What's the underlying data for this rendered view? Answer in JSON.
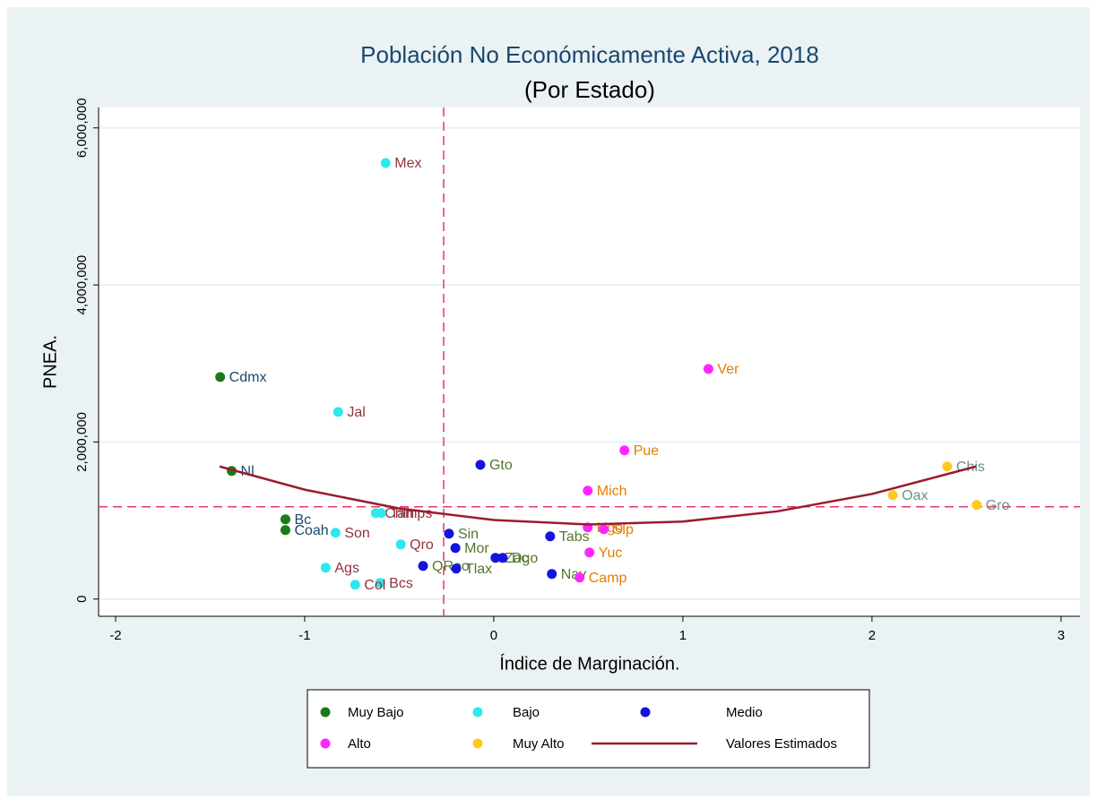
{
  "chart_data": {
    "type": "scatter",
    "title": "Población No Económicamente Activa, 2018",
    "subtitle": "(Por Estado)",
    "x_label": "Índice de Marginación.",
    "y_label": "PNEA.",
    "xlim": [
      -2.09,
      3.1
    ],
    "ylim": [
      -220000,
      6260000
    ],
    "xticks": [
      -2,
      -1,
      0,
      1,
      2,
      3
    ],
    "yticks": [
      0,
      {
        "value": 2000000,
        "label": "2,000,000"
      },
      {
        "value": 4000000,
        "label": "4,000,000"
      },
      {
        "value": 6000000,
        "label": "6,000,000"
      }
    ],
    "grid": true,
    "xline": -0.265,
    "yline": 1174000,
    "refline_color": "#e8336e",
    "series": [
      {
        "name": "Muy Bajo",
        "color": "#1a7a1a",
        "label_color": "#1a476f",
        "labels": [
          "Cdmx",
          "Nl",
          "Bc",
          "Coah"
        ],
        "x": [
          -1.447,
          -1.386,
          -1.102,
          -1.102
        ],
        "values": [
          2828000,
          1631000,
          1015000,
          878000
        ]
      },
      {
        "name": "Bajo",
        "color": "#2ee8ee",
        "label_color": "#90353b",
        "labels": [
          "Mex",
          "Jal",
          "Chih",
          "Tamps",
          "Son",
          "Qro",
          "Ags",
          "Bcs",
          "Col"
        ],
        "x": [
          -0.572,
          -0.823,
          -0.624,
          -0.596,
          -0.837,
          -0.492,
          -0.889,
          -0.601,
          -0.733
        ],
        "values": [
          5553000,
          2383000,
          1095000,
          1095000,
          844000,
          696000,
          399000,
          205000,
          182000
        ]
      },
      {
        "name": "Medio",
        "color": "#1414e0",
        "label_color": "#55752f",
        "labels": [
          "Gto",
          "Sin",
          "Mor",
          "Tabs",
          "Zac",
          "Dgo",
          "QRoo",
          "Tlax",
          "Nay"
        ],
        "x": [
          -0.071,
          -0.237,
          -0.203,
          0.298,
          0.009,
          0.047,
          -0.374,
          -0.199,
          0.307
        ],
        "values": [
          1710000,
          832000,
          650000,
          798000,
          525000,
          525000,
          422000,
          388000,
          319000
        ]
      },
      {
        "name": "Alto",
        "color": "#ff26ff",
        "label_color": "#e37e00",
        "labels": [
          "Ver",
          "Pue",
          "Mich",
          "Hgo",
          "Slp",
          "Yuc",
          "Camp"
        ],
        "x": [
          1.135,
          0.691,
          0.497,
          0.497,
          0.582,
          0.506,
          0.454
        ],
        "values": [
          2930000,
          1893000,
          1380000,
          912000,
          889000,
          593000,
          274000
        ]
      },
      {
        "name": "Muy Alto",
        "color": "#ffc820",
        "label_color": "#6e8e84",
        "labels": [
          "Chis",
          "Oax",
          "Gro"
        ],
        "x": [
          2.398,
          2.11,
          2.554
        ],
        "values": [
          1688000,
          1323000,
          1197000
        ]
      },
      {
        "name": "Valores Estimados",
        "type": "line",
        "color": "#9b1b30",
        "x": [
          -1.45,
          -1,
          -0.5,
          0,
          0.5,
          1,
          1.5,
          2,
          2.55
        ],
        "values": [
          1688000,
          1393000,
          1153000,
          1006000,
          950000,
          987000,
          1117000,
          1338000,
          1688000
        ]
      }
    ]
  }
}
